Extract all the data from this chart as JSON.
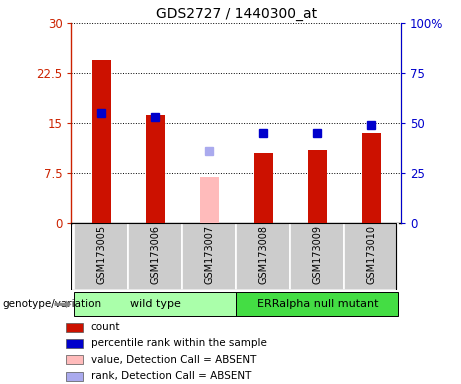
{
  "title": "GDS2727 / 1440300_at",
  "samples": [
    "GSM173005",
    "GSM173006",
    "GSM173007",
    "GSM173008",
    "GSM173009",
    "GSM173010"
  ],
  "bar_values": [
    24.5,
    16.2,
    null,
    10.5,
    11.0,
    13.5
  ],
  "bar_absent_values": [
    null,
    null,
    6.8,
    null,
    null,
    null
  ],
  "bar_color_present": "#cc1100",
  "bar_color_absent": "#ffbbbb",
  "rank_values": [
    55,
    53,
    null,
    45,
    45,
    49
  ],
  "rank_absent_values": [
    null,
    null,
    36,
    null,
    null,
    null
  ],
  "rank_color_present": "#0000cc",
  "rank_color_absent": "#aaaaee",
  "ylim_left": [
    0,
    30
  ],
  "ylim_right": [
    0,
    100
  ],
  "yticks_left": [
    0,
    7.5,
    15,
    22.5,
    30
  ],
  "yticks_right": [
    0,
    25,
    50,
    75,
    100
  ],
  "yticklabels_left": [
    "0",
    "7.5",
    "15",
    "22.5",
    "30"
  ],
  "yticklabels_right": [
    "0",
    "25",
    "50",
    "75",
    "100%"
  ],
  "left_axis_color": "#cc2200",
  "right_axis_color": "#0000cc",
  "groups": [
    {
      "label": "wild type",
      "samples": [
        0,
        1,
        2
      ],
      "color": "#aaffaa"
    },
    {
      "label": "ERRalpha null mutant",
      "samples": [
        3,
        4,
        5
      ],
      "color": "#44dd44"
    }
  ],
  "group_label_prefix": "genotype/variation",
  "legend_items": [
    {
      "color": "#cc1100",
      "label": "count"
    },
    {
      "color": "#0000cc",
      "label": "percentile rank within the sample"
    },
    {
      "color": "#ffbbbb",
      "label": "value, Detection Call = ABSENT"
    },
    {
      "color": "#aaaaee",
      "label": "rank, Detection Call = ABSENT"
    }
  ],
  "bar_width": 0.35,
  "marker_size": 6,
  "grid_style": "dotted",
  "background_plot": "#ffffff",
  "background_xaxis": "#cccccc"
}
